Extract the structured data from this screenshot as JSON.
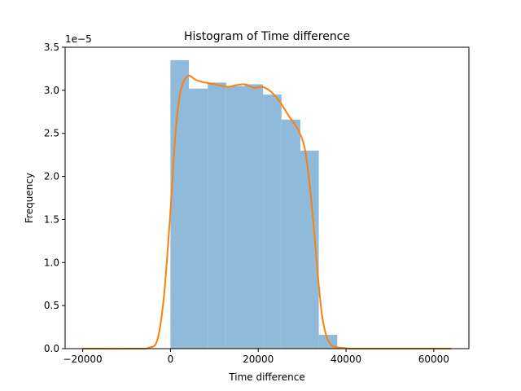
{
  "chart_data": {
    "type": "histogram",
    "title": "Histogram of Time difference",
    "xlabel": "Time difference",
    "ylabel": "Frequency",
    "y_scale_label": "1e−5",
    "xlim": [
      -24000,
      68000
    ],
    "ylim": [
      0,
      3.5e-05
    ],
    "xticks": [
      -20000,
      0,
      20000,
      40000,
      60000
    ],
    "xtick_labels": [
      "−20000",
      "0",
      "20000",
      "40000",
      "60000"
    ],
    "yticks": [
      0,
      5e-06,
      1e-05,
      1.5e-05,
      2e-05,
      2.5e-05,
      3e-05,
      3.5e-05
    ],
    "ytick_labels": [
      "0.0",
      "0.5",
      "1.0",
      "1.5",
      "2.0",
      "2.5",
      "3.0",
      "3.5"
    ],
    "bins": [
      {
        "x0": 0,
        "x1": 4200,
        "value": 3.35e-05
      },
      {
        "x0": 4200,
        "x1": 8500,
        "value": 3.02e-05
      },
      {
        "x0": 8500,
        "x1": 12700,
        "value": 3.09e-05
      },
      {
        "x0": 12700,
        "x1": 16900,
        "value": 3.05e-05
      },
      {
        "x0": 16900,
        "x1": 21100,
        "value": 3.07e-05
      },
      {
        "x0": 21100,
        "x1": 25300,
        "value": 2.95e-05
      },
      {
        "x0": 25300,
        "x1": 29600,
        "value": 2.66e-05
      },
      {
        "x0": 29600,
        "x1": 33800,
        "value": 2.3e-05
      },
      {
        "x0": 33800,
        "x1": 38000,
        "value": 1.6e-06
      }
    ],
    "kde": {
      "x": [
        -20000,
        -8000,
        -5000,
        -3000,
        -1500,
        0,
        1000,
        2000,
        3000,
        4200,
        5500,
        7000,
        9000,
        11000,
        13000,
        15000,
        17000,
        19000,
        21000,
        23000,
        25000,
        27000,
        29000,
        30500,
        31500,
        32500,
        33500,
        34500,
        35500,
        36500,
        37500,
        39000,
        41000,
        44000,
        50000,
        64000
      ],
      "y": [
        0,
        0,
        1e-07,
        1e-06,
        6e-06,
        1.6e-05,
        2.4e-05,
        2.9e-05,
        3.1e-05,
        3.17e-05,
        3.13e-05,
        3.1e-05,
        3.08e-05,
        3.06e-05,
        3.04e-05,
        3.06e-05,
        3.07e-05,
        3.03e-05,
        3.04e-05,
        2.98e-05,
        2.86e-05,
        2.7e-05,
        2.55e-05,
        2.35e-05,
        2e-05,
        1.5e-05,
        9e-06,
        4e-06,
        1.5e-06,
        5e-07,
        2e-07,
        1e-07,
        0,
        0,
        0,
        0
      ]
    },
    "bar_color": "#8fbad9",
    "line_color": "#ff7f0e",
    "grid": false,
    "legend": false
  }
}
